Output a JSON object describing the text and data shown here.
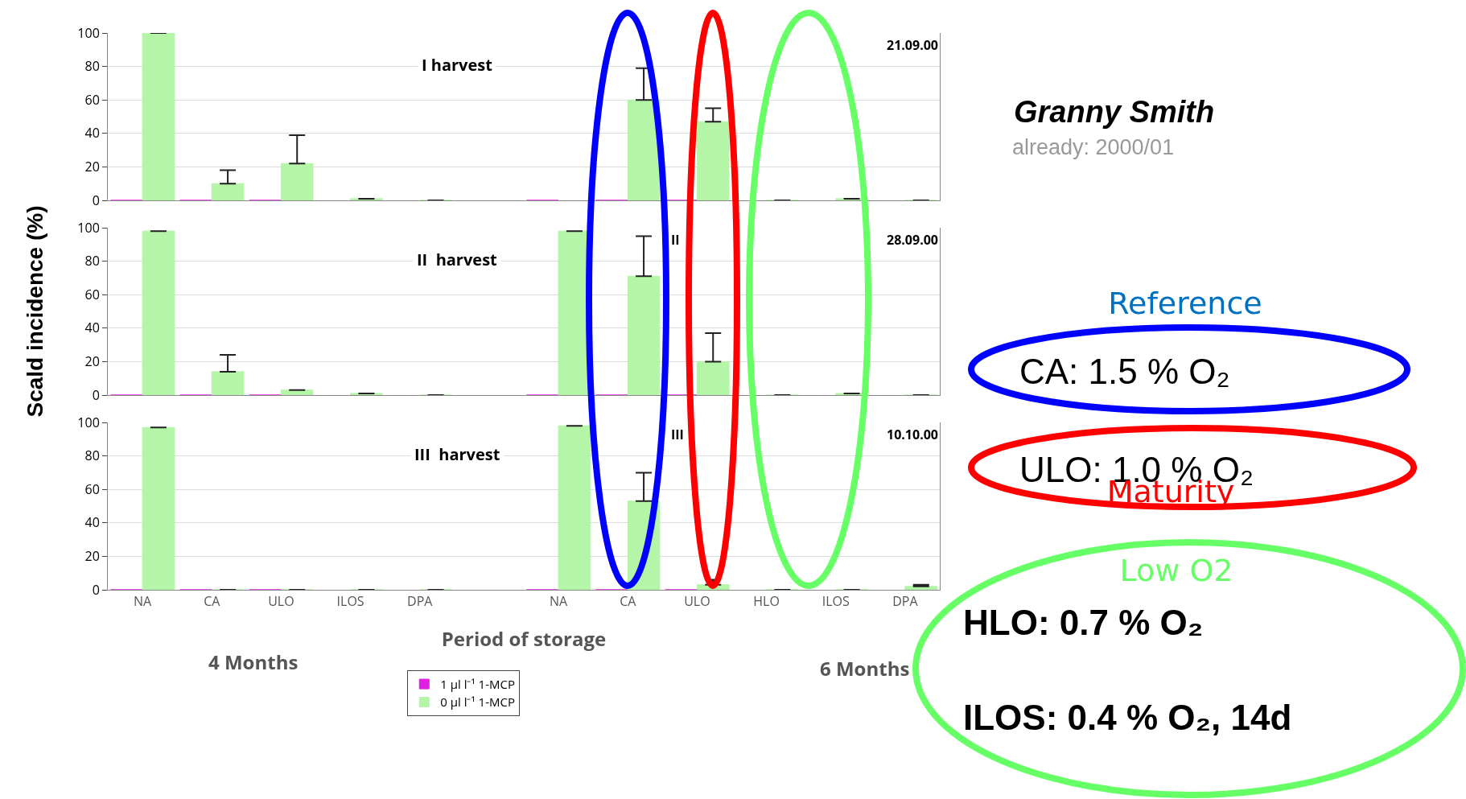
{
  "chart_data": [
    {
      "type": "bar",
      "title": "I harvest",
      "categories": [
        null,
        null,
        null,
        null,
        null,
        null,
        null,
        null,
        null,
        null,
        null,
        null
      ],
      "ylim": [
        0,
        100
      ],
      "yticks": [
        0,
        20,
        40,
        60,
        80,
        100
      ],
      "grid": "y",
      "tick_labels": "y",
      "annotations": [
        "21.09.00"
      ],
      "series": [
        {
          "color": "#e020e0",
          "values": [
            0,
            0,
            0,
            null,
            null,
            null,
            0,
            0,
            0,
            null,
            null,
            null
          ]
        },
        {
          "color": "#b4f5a8",
          "values": [
            100,
            10,
            22,
            1,
            0,
            null,
            null,
            60,
            47,
            0,
            1,
            0
          ],
          "errors": [
            null,
            [
              10,
              18
            ],
            [
              22,
              39
            ],
            null,
            null,
            null,
            null,
            [
              60,
              79
            ],
            [
              47,
              55
            ],
            null,
            null,
            null
          ]
        }
      ]
    },
    {
      "type": "bar",
      "title": "II  harvest",
      "ylabel": "Scald  incidence  (%)",
      "categories": [
        null,
        null,
        null,
        null,
        null,
        null,
        null,
        null,
        null,
        null,
        null,
        null
      ],
      "ylim": [
        0,
        100
      ],
      "yticks": [
        0,
        20,
        40,
        60,
        80,
        100
      ],
      "grid": "y",
      "tick_labels": "y",
      "annotations": [
        "II",
        "28.09.00"
      ],
      "series": [
        {
          "color": "#e020e0",
          "values": [
            0,
            0,
            0,
            null,
            null,
            null,
            0,
            0,
            0,
            null,
            null,
            null
          ]
        },
        {
          "color": "#b4f5a8",
          "values": [
            98,
            14,
            3,
            1,
            0,
            null,
            98,
            71,
            20,
            0,
            1,
            0
          ],
          "errors": [
            null,
            [
              14,
              24
            ],
            null,
            null,
            null,
            null,
            null,
            [
              71,
              95
            ],
            [
              20,
              37
            ],
            null,
            null,
            null
          ]
        }
      ]
    },
    {
      "type": "bar",
      "title": "III  harvest",
      "xlabel": "Period of storage",
      "categories": [
        "NA",
        "CA",
        "ULO",
        "ILOS",
        "DPA",
        null,
        "NA",
        "CA",
        "ULO",
        "HLO",
        "ILOS",
        "DPA"
      ],
      "ylim": [
        0,
        100
      ],
      "yticks": [
        0,
        20,
        40,
        60,
        80,
        100
      ],
      "grid": "y",
      "legend": "bottom",
      "annotations": [
        "III",
        "10.10.00",
        "4 Months",
        "6 Months"
      ],
      "series": [
        {
          "name": "1 µl l⁻¹ 1-MCP",
          "color": "#e020e0",
          "values": [
            0,
            0,
            0,
            null,
            null,
            null,
            0,
            0,
            0,
            null,
            null,
            null
          ]
        },
        {
          "name": "0 µl l⁻¹ 1-MCP",
          "color": "#b4f5a8",
          "values": [
            97,
            0,
            0,
            0,
            0,
            null,
            98,
            53,
            3,
            0,
            0,
            2
          ],
          "errors": [
            null,
            null,
            null,
            null,
            null,
            null,
            null,
            [
              53,
              70
            ],
            [
              3,
              6
            ],
            null,
            null,
            [
              2,
              3
            ]
          ]
        }
      ]
    },
    {
      "type": "other",
      "title": "Granny Smith",
      "subtitle": "already: 2000/01",
      "annotations": [
        "Reference",
        "CA:    1.5 % O₂",
        "ULO:  1.0 % O₂",
        "Maturity",
        "Low O2",
        "HLO:  0.7 % O₂",
        "ILOS: 0.4 % O₂, 14d"
      ]
    }
  ]
}
